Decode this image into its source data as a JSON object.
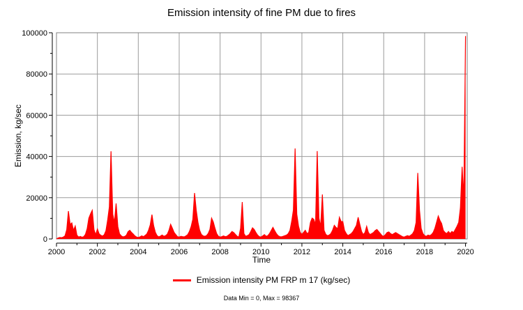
{
  "chart_data": {
    "type": "area",
    "title": "Emission intensity of fine PM due to fires",
    "xlabel": "Time",
    "ylabel": "Emission, kg/sec",
    "footer": "Data Min = 0, Max = 98367",
    "legend_label": "Emission intensity PM FRP m 17 (kg/sec)",
    "series_color": "#ff0000",
    "grid_color": "#9b9b9b",
    "box_color": "#808080",
    "axis_color": "#000000",
    "grid": true,
    "legend_position": "bottom-center",
    "xlim": [
      2000,
      2020.083
    ],
    "ylim": [
      0,
      100000
    ],
    "x_major_ticks": [
      2000,
      2002,
      2004,
      2006,
      2008,
      2010,
      2012,
      2014,
      2016,
      2018,
      2020
    ],
    "x_minor_ticks": [
      2001,
      2003,
      2005,
      2007,
      2009,
      2011,
      2013,
      2015,
      2017,
      2019
    ],
    "y_major_ticks": [
      0,
      20000,
      40000,
      60000,
      80000,
      100000
    ],
    "y_minor_ticks": [
      10000,
      30000,
      50000,
      70000,
      90000
    ],
    "stats": {
      "min": 0,
      "max": 98367
    },
    "series": [
      {
        "name": "Emission intensity PM FRP m 17 (kg/sec)",
        "cadence": "monthly",
        "x_start_year": 2000,
        "values": [
          0,
          500,
          700,
          600,
          900,
          1500,
          4500,
          13500,
          7000,
          7800,
          4200,
          6300,
          1800,
          900,
          1200,
          800,
          1100,
          2200,
          5000,
          10100,
          12200,
          13900,
          4500,
          2000,
          4800,
          2500,
          1800,
          1400,
          2000,
          4000,
          9000,
          15500,
          42500,
          12000,
          8000,
          17200,
          6000,
          2500,
          1500,
          1000,
          1200,
          1800,
          3500,
          4200,
          3200,
          2400,
          1500,
          900,
          700,
          1000,
          1500,
          1100,
          1700,
          2400,
          4200,
          6800,
          11800,
          6500,
          3200,
          1600,
          1000,
          1400,
          1900,
          1300,
          1600,
          2300,
          4200,
          7100,
          5200,
          3200,
          2100,
          1100,
          900,
          1300,
          1100,
          1000,
          1500,
          2100,
          3600,
          6000,
          9500,
          22300,
          14000,
          8000,
          4200,
          2200,
          1500,
          1300,
          1600,
          2600,
          4600,
          10100,
          8200,
          5200,
          2600,
          1300,
          900,
          1100,
          1500,
          1100,
          1300,
          1900,
          2600,
          3600,
          3100,
          2200,
          1300,
          900,
          5200,
          17900,
          2600,
          1300,
          1600,
          2100,
          3600,
          5400,
          4600,
          3100,
          1900,
          1100,
          900,
          1500,
          2100,
          1300,
          1600,
          2600,
          4100,
          5600,
          4100,
          2600,
          1600,
          1100,
          1000,
          1300,
          1600,
          1900,
          2600,
          4200,
          8500,
          14000,
          43900,
          12000,
          6200,
          3200,
          2200,
          3200,
          4200,
          2600,
          3100,
          8000,
          10100,
          9500,
          7000,
          42600,
          10000,
          6000,
          21600,
          4200,
          2200,
          1600,
          1900,
          2600,
          4200,
          6600,
          5600,
          5000,
          10500,
          8400,
          8400,
          4200,
          2600,
          1600,
          2100,
          2600,
          3600,
          5100,
          6600,
          10500,
          7000,
          3600,
          2100,
          3100,
          6100,
          3100,
          2100,
          2600,
          3100,
          4100,
          4600,
          3600,
          2600,
          1600,
          1300,
          2100,
          3100,
          3400,
          2600,
          2100,
          2600,
          3100,
          2600,
          2100,
          1600,
          1100,
          900,
          1300,
          1600,
          1300,
          1900,
          2600,
          4100,
          8000,
          32000,
          13900,
          5100,
          2600,
          1600,
          1300,
          1900,
          1600,
          2100,
          3100,
          5100,
          8000,
          11100,
          9000,
          7500,
          4100,
          3100,
          2600,
          3600,
          2600,
          3600,
          3100,
          4600,
          6100,
          8000,
          15000,
          35000,
          20000,
          98367
        ]
      }
    ]
  }
}
